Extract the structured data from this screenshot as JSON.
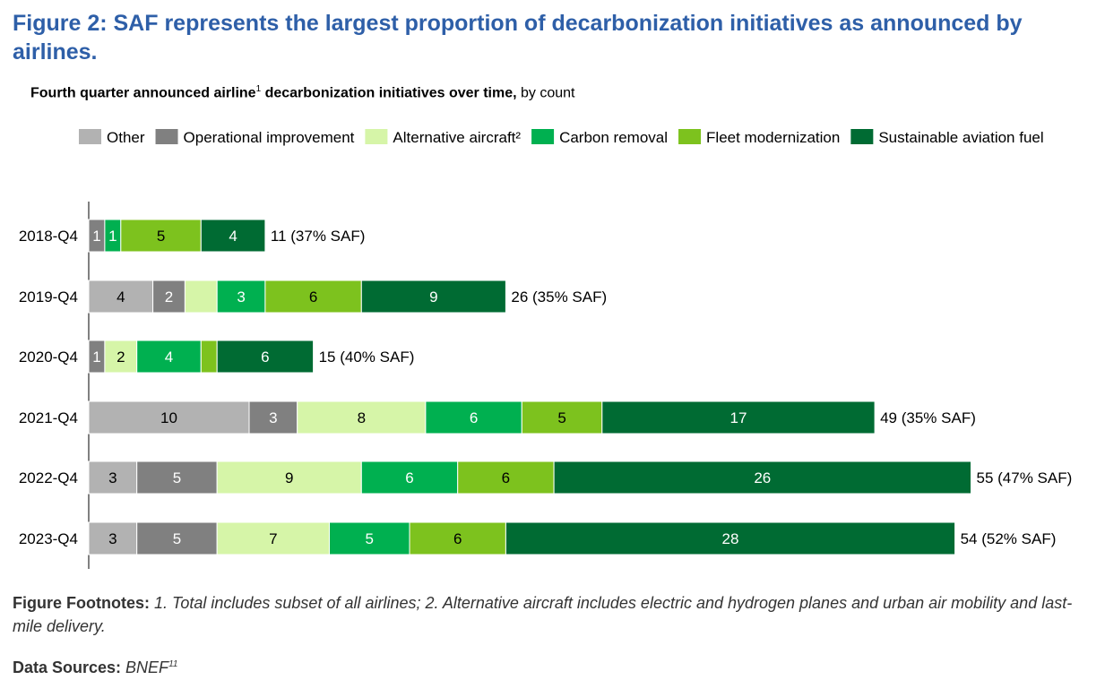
{
  "figure": {
    "title": "Figure 2:  SAF represents the largest proportion of decarbonization initiatives as announced by airlines.",
    "subtitle_bold": "Fourth quarter announced airline",
    "subtitle_sup": "1",
    "subtitle_bold2": " decarbonization initiatives over time,",
    "subtitle_rest": " by count"
  },
  "chart_data": {
    "type": "bar",
    "orientation": "horizontal",
    "stacked": true,
    "categories": [
      "2018-Q4",
      "2019-Q4",
      "2020-Q4",
      "2021-Q4",
      "2022-Q4",
      "2023-Q4"
    ],
    "series": [
      {
        "name": "Other",
        "color": "#b2b2b2",
        "values": [
          0,
          4,
          0,
          10,
          3,
          3
        ],
        "labels": [
          "",
          "4",
          "",
          "10",
          "3",
          "3"
        ]
      },
      {
        "name": "Operational improvement",
        "color": "#808080",
        "values": [
          1,
          2,
          1,
          3,
          5,
          5
        ],
        "labels": [
          "1",
          "2",
          "1",
          "3",
          "5",
          "5"
        ]
      },
      {
        "name": "Alternative aircraft²",
        "color": "#d6f5a8",
        "values": [
          0,
          2,
          2,
          8,
          9,
          7
        ],
        "labels": [
          "",
          "",
          "2",
          "8",
          "9",
          "7"
        ]
      },
      {
        "name": "Carbon removal",
        "color": "#00b050",
        "values": [
          1,
          3,
          4,
          6,
          6,
          5
        ],
        "labels": [
          "1",
          "3",
          "4",
          "6",
          "6",
          "5"
        ]
      },
      {
        "name": "Fleet modernization",
        "color": "#7dc21e",
        "values": [
          5,
          6,
          1,
          5,
          6,
          6
        ],
        "labels": [
          "5",
          "6",
          "",
          "5",
          "6",
          "6"
        ]
      },
      {
        "name": "Sustainable aviation fuel",
        "color": "#006b33",
        "values": [
          4,
          9,
          6,
          17,
          26,
          28
        ],
        "labels": [
          "4",
          "9",
          "6",
          "17",
          "26",
          "28"
        ]
      }
    ],
    "totals": [
      "11 (37% SAF)",
      "26 (35% SAF)",
      "15 (40% SAF)",
      "49 (35% SAF)",
      "55 (47% SAF)",
      "54 (52% SAF)"
    ],
    "legend_position": "top-right",
    "grid": false
  },
  "footnotes": {
    "label": "Figure Footnotes:",
    "text": " 1. Total includes subset of all airlines; 2. Alternative aircraft includes electric and hydrogen planes and urban air mobility and last-mile delivery."
  },
  "sources": {
    "label": "Data Sources:",
    "text": " BNEF",
    "sup": "11"
  }
}
